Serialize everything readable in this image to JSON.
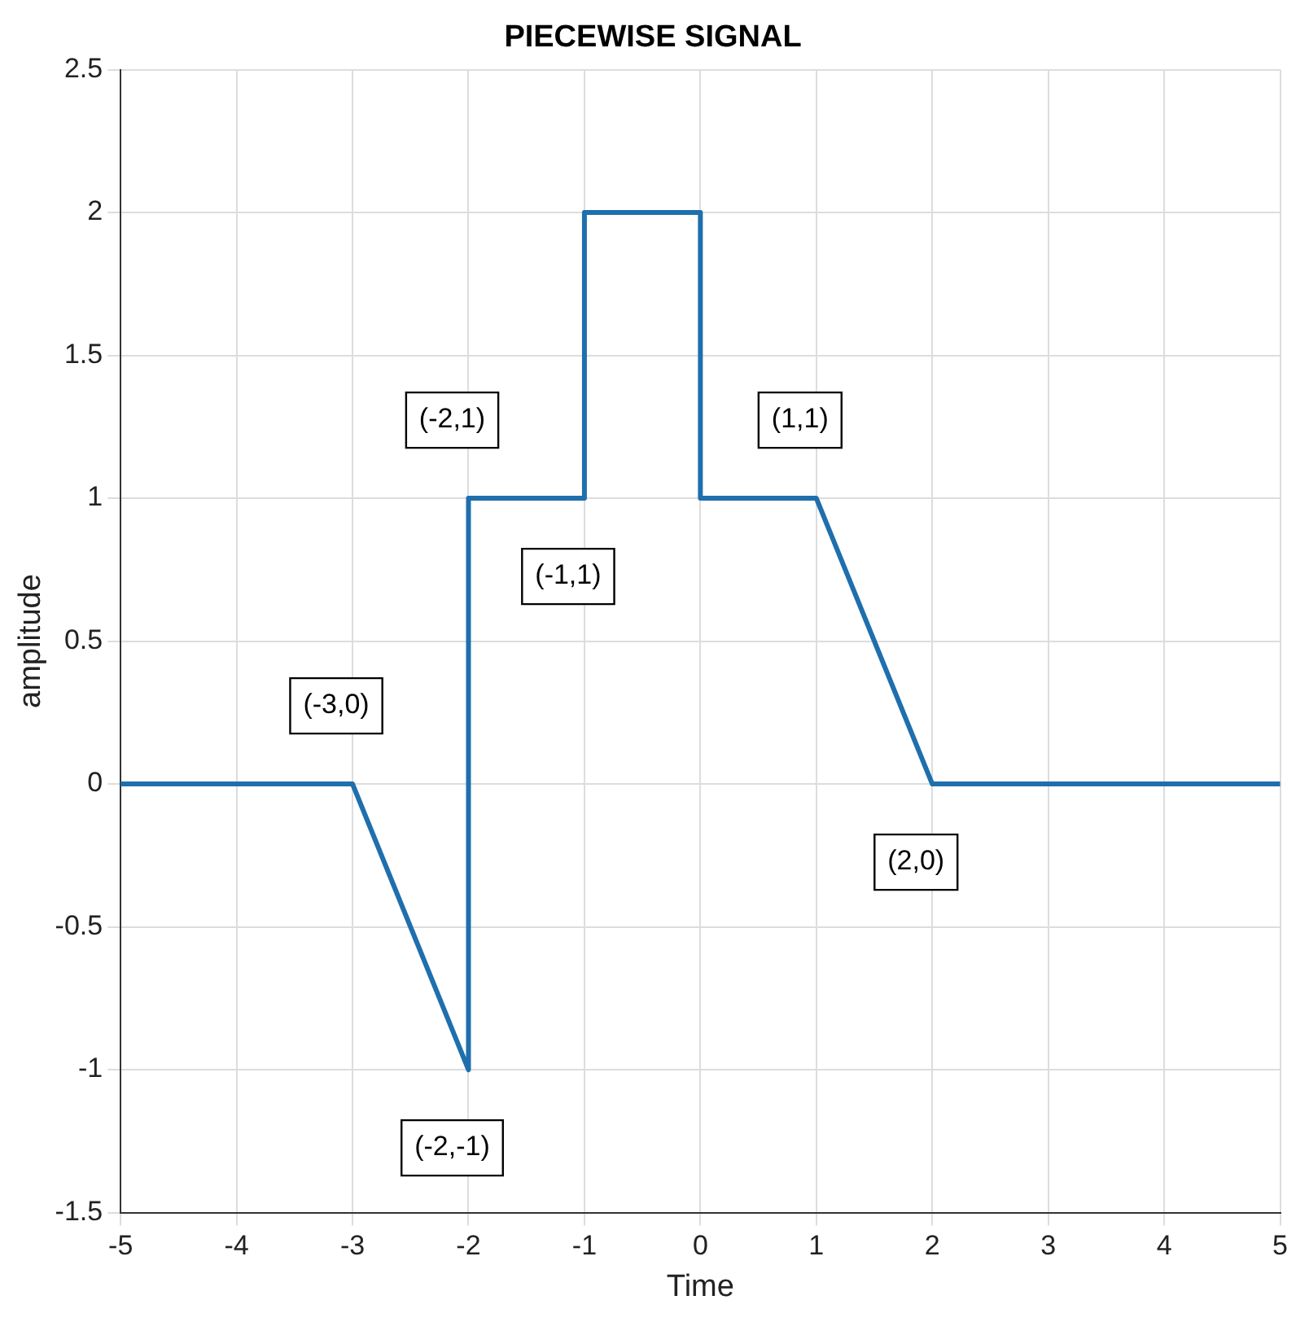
{
  "chart_data": {
    "type": "line",
    "title": "PIECEWISE SIGNAL",
    "xlabel": "Time",
    "ylabel": "amplitude",
    "x": [
      -5,
      -3,
      -2,
      -2,
      -1,
      -1,
      0,
      0,
      1,
      2,
      5
    ],
    "series": [
      {
        "color": "#1f6fad",
        "values": [
          0,
          0,
          -1,
          1,
          1,
          2,
          2,
          1,
          1,
          0,
          0
        ]
      }
    ],
    "xlim": [
      -5,
      5
    ],
    "xticks": [
      -5,
      -4,
      -3,
      -2,
      -1,
      0,
      1,
      2,
      3,
      4,
      5
    ],
    "ylim": [
      -1.5,
      2.5
    ],
    "yticks": [
      -1.5,
      -1,
      -0.5,
      0,
      0.5,
      1,
      1.5,
      2,
      2.5
    ],
    "grid": true,
    "legend": false,
    "marker": "none",
    "line_style": "solid",
    "annotations": [
      {
        "text": "(-3,0)",
        "x": -3,
        "y": 0
      },
      {
        "text": "(-2,-1)",
        "x": -2,
        "y": -1
      },
      {
        "text": "(-2,1)",
        "x": -2,
        "y": 1
      },
      {
        "text": "(-1,1)",
        "x": -1,
        "y": 1
      },
      {
        "text": "(1,1)",
        "x": 1,
        "y": 1
      },
      {
        "text": "(2,0)",
        "x": 2,
        "y": 0
      }
    ]
  }
}
